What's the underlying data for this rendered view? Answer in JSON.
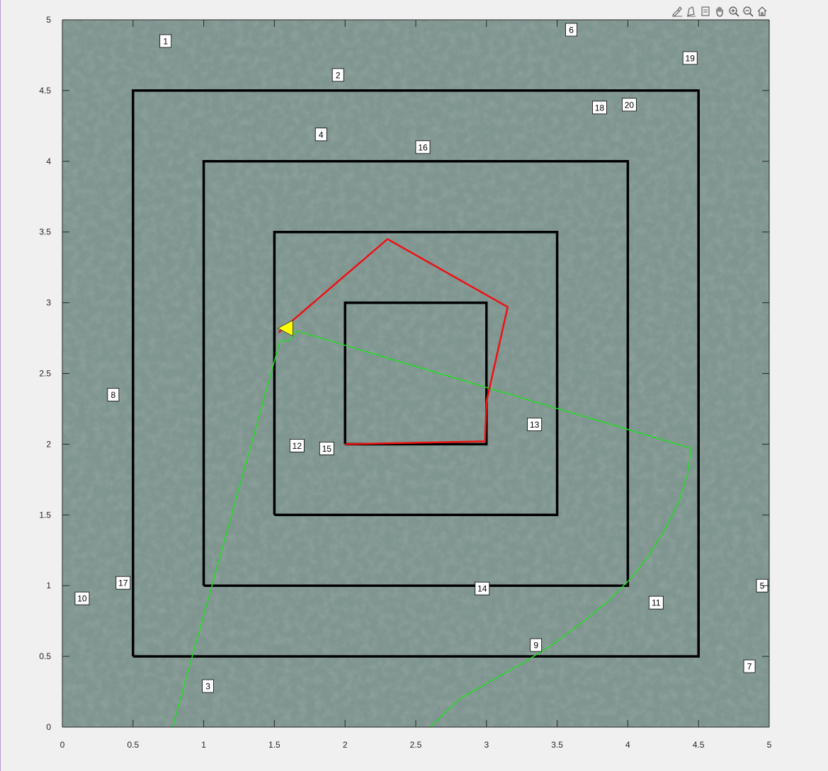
{
  "toolbar": {
    "buttons": [
      {
        "name": "brush-icon",
        "title": "Brush"
      },
      {
        "name": "datatip-icon",
        "title": "Data Tips"
      },
      {
        "name": "restore-view-icon",
        "title": "Restore View"
      },
      {
        "name": "pan-icon",
        "title": "Pan"
      },
      {
        "name": "zoom-in-icon",
        "title": "Zoom In"
      },
      {
        "name": "zoom-out-icon",
        "title": "Zoom Out"
      },
      {
        "name": "home-icon",
        "title": "Home"
      }
    ]
  },
  "chart_data": {
    "type": "line",
    "title": "",
    "xlabel": "",
    "ylabel": "",
    "xlim": [
      0,
      5
    ],
    "ylim": [
      0,
      5
    ],
    "xticks": [
      0,
      0.5,
      1,
      1.5,
      2,
      2.5,
      3,
      3.5,
      4,
      4.5,
      5
    ],
    "yticks": [
      0,
      0.5,
      1,
      1.5,
      2,
      2.5,
      3,
      3.5,
      4,
      4.5,
      5
    ],
    "xtick_labels": [
      "0",
      "0.5",
      "1",
      "1.5",
      "2",
      "2.5",
      "3",
      "3.5",
      "4",
      "4.5",
      "5"
    ],
    "ytick_labels": [
      "0",
      "0.5",
      "1",
      "1.5",
      "2",
      "2.5",
      "3",
      "3.5",
      "4",
      "4.5",
      "5"
    ],
    "background": "textured grey-green terrain image",
    "colors": {
      "squares": "#000000",
      "red_path": "#ee1111",
      "green_path": "#22dd22",
      "marker": "#ffff00",
      "label_bg": "#ffffff"
    },
    "squares": [
      {
        "name": "square-outer",
        "x": [
          0.5,
          4.5,
          4.5,
          0.5,
          0.5
        ],
        "y": [
          0.5,
          0.5,
          4.5,
          4.5,
          0.5
        ]
      },
      {
        "name": "square-second",
        "x": [
          1,
          4,
          4,
          1,
          1
        ],
        "y": [
          1,
          1,
          4,
          4,
          1
        ]
      },
      {
        "name": "square-third",
        "x": [
          1.5,
          3.5,
          3.5,
          1.5,
          1.5
        ],
        "y": [
          1.5,
          1.5,
          3.5,
          3.5,
          1.5
        ]
      },
      {
        "name": "square-inner",
        "x": [
          2,
          3,
          3,
          2,
          2
        ],
        "y": [
          2,
          2,
          3,
          3,
          2
        ]
      }
    ],
    "red_path": {
      "x": [
        2.0,
        2.5,
        2.99,
        3.0,
        3.15,
        2.3,
        1.53
      ],
      "y": [
        2.0,
        2.01,
        2.02,
        2.3,
        2.97,
        3.45,
        2.79
      ]
    },
    "green_path": {
      "x": [
        0.78,
        1.54,
        1.6,
        1.66,
        4.45,
        4.42,
        4.36,
        4.27,
        4.16,
        4.03,
        3.87,
        3.69,
        3.49,
        3.27,
        3.04,
        2.81,
        2.6
      ],
      "y": [
        0.0,
        2.73,
        2.73,
        2.8,
        1.97,
        1.78,
        1.59,
        1.41,
        1.23,
        1.06,
        0.9,
        0.75,
        0.6,
        0.46,
        0.33,
        0.2,
        0.0
      ]
    },
    "marker": {
      "x": 1.58,
      "y": 2.82,
      "shape": "left-pointing triangle"
    },
    "region_labels": [
      {
        "text": "1",
        "x": 0.73,
        "y": 4.85
      },
      {
        "text": "2",
        "x": 1.95,
        "y": 4.61
      },
      {
        "text": "3",
        "x": 1.03,
        "y": 0.29
      },
      {
        "text": "4",
        "x": 1.83,
        "y": 4.19
      },
      {
        "text": "5",
        "x": 4.95,
        "y": 1.0
      },
      {
        "text": "6",
        "x": 3.6,
        "y": 4.93
      },
      {
        "text": "7",
        "x": 4.86,
        "y": 0.43
      },
      {
        "text": "8",
        "x": 0.36,
        "y": 2.35
      },
      {
        "text": "9",
        "x": 3.35,
        "y": 0.58
      },
      {
        "text": "10",
        "x": 0.14,
        "y": 0.91
      },
      {
        "text": "11",
        "x": 4.2,
        "y": 0.88
      },
      {
        "text": "12",
        "x": 1.66,
        "y": 1.99
      },
      {
        "text": "13",
        "x": 3.34,
        "y": 2.14
      },
      {
        "text": "14",
        "x": 2.97,
        "y": 0.98
      },
      {
        "text": "15",
        "x": 1.87,
        "y": 1.97
      },
      {
        "text": "16",
        "x": 2.55,
        "y": 4.1
      },
      {
        "text": "17",
        "x": 0.43,
        "y": 1.02
      },
      {
        "text": "18",
        "x": 3.8,
        "y": 4.38
      },
      {
        "text": "19",
        "x": 4.44,
        "y": 4.73
      },
      {
        "text": "20",
        "x": 4.01,
        "y": 4.4
      }
    ]
  }
}
